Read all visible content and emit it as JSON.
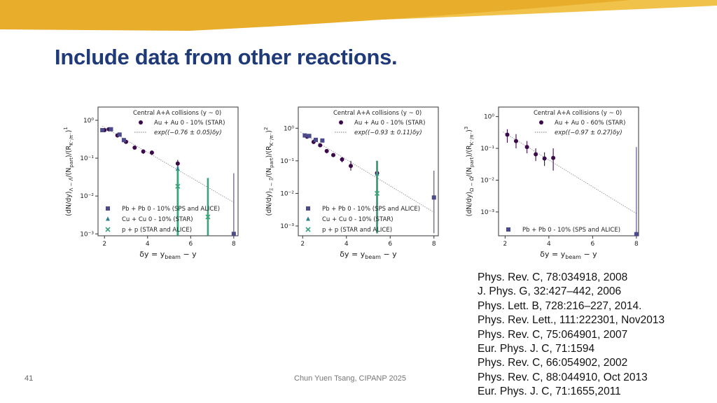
{
  "slide": {
    "title": "Include data from other reactions.",
    "footer": "Chun Yuen Tsang, CIPANP 2025",
    "page_number": "41",
    "banner_colors": [
      "#e8ad2a",
      "#f0c24a"
    ]
  },
  "references": [
    "Phys. Rev. C, 78:034918, 2008",
    "J. Phys. G, 32:427–442, 2006",
    "Phys. Lett. B, 728:216–227, 2014.",
    "Phys. Rev. Lett., 111:222301, Nov2013",
    "Phys. Rev. C, 75:064901, 2007",
    "Eur. Phys. J. C, 71:1594",
    "Phys. Rev. C, 66:054902, 2002",
    "Phys. Rev. C, 88:044910, Oct 2013",
    "Eur. Phys. J. C, 71:1655,2011"
  ],
  "chart_data": [
    {
      "type": "scatter",
      "ylabel": "(dN/dy)_{Λ−Λ̄}/(N_part)/(R_{K⁻/π⁻})^1",
      "ylabel_parts": {
        "base": "(dN/dy)",
        "sub": "Λ − Λ̄",
        "mid": "/(N",
        "sub2": "part",
        "mid2": ")/(R",
        "sub3": "K⁻/π⁻",
        "end": ")",
        "sup": "1"
      },
      "xlabel": "δy = y_beam − y",
      "xlabel_parts": {
        "pre": "δy = y",
        "sub": "beam",
        "post": " − y"
      },
      "x_ticks": [
        "2",
        "4",
        "6",
        "8"
      ],
      "y_ticks": [
        "10⁰",
        "10⁻¹",
        "10⁻²",
        "10⁻³"
      ],
      "xlim": [
        1.7,
        8.2
      ],
      "ylog": true,
      "ylim_exp": [
        -3.05,
        0.35
      ],
      "legend_top": {
        "header": "Central A+A collisions (y ~ 0)",
        "entries": [
          {
            "label": "Au + Au 0 - 10% (STAR)",
            "marker": "circle",
            "color": "#3b0a4a"
          },
          {
            "label": "exp((−0.76 ± 0.05)δy)",
            "marker": "dotted-line",
            "color": "#777777"
          }
        ]
      },
      "legend_bottom": [
        {
          "label": "Pb + Pb 0 - 10% (SPS and ALICE)",
          "marker": "square",
          "color": "#4b4a8a"
        },
        {
          "label": "Cu + Cu 0 - 10% (STAR)",
          "marker": "triangle",
          "color": "#2a7d8c"
        },
        {
          "label": "p + p (STAR and ALICE)",
          "marker": "x",
          "color": "#39a37a"
        }
      ],
      "fit": {
        "slope": -0.76,
        "ref_x": 2.0,
        "ref_y": 0.65
      },
      "series": [
        {
          "name": "Au + Au 0 - 10% (STAR)",
          "marker": "circle",
          "color": "#3b0a4a",
          "points": [
            [
              2.0,
              0.55
            ],
            [
              2.2,
              0.58
            ],
            [
              2.6,
              0.4
            ],
            [
              3.0,
              0.27
            ],
            [
              3.4,
              0.19
            ],
            [
              3.8,
              0.15
            ],
            [
              4.2,
              0.14
            ],
            [
              5.4,
              0.072
            ]
          ],
          "err": [
            [
              0.5,
              0.6
            ],
            [
              0.52,
              0.64
            ],
            [
              0.35,
              0.45
            ],
            [
              0.24,
              0.3
            ],
            [
              0.17,
              0.21
            ],
            [
              0.13,
              0.17
            ],
            [
              0.12,
              0.16
            ],
            [
              0.06,
              0.09
            ]
          ]
        },
        {
          "name": "Pb + Pb 0 - 10% (SPS and ALICE)",
          "marker": "square",
          "color": "#4b4a8a",
          "points": [
            [
              1.9,
              0.55
            ],
            [
              2.3,
              0.58
            ],
            [
              2.7,
              0.42
            ],
            [
              2.9,
              0.3
            ]
          ],
          "err": [
            [
              0.5,
              0.6
            ],
            [
              0.54,
              0.62
            ],
            [
              0.38,
              0.46
            ],
            [
              0.27,
              0.33
            ]
          ]
        },
        {
          "name": "Cu + Cu 0 - 10% (STAR)",
          "marker": "triangle",
          "color": "#2a7d8c",
          "points": [
            [
              5.4,
              0.052
            ]
          ],
          "err": [
            [
              0.0009,
              0.06
            ]
          ]
        },
        {
          "name": "p + p (STAR and ALICE)",
          "marker": "x",
          "color": "#39a37a",
          "points": [
            [
              5.4,
              0.018
            ],
            [
              6.8,
              0.0028
            ]
          ],
          "err": [
            [
              0.0009,
              0.05
            ],
            [
              0.0009,
              0.03
            ]
          ]
        },
        {
          "name": "Pb + Pb 0 - 10% (SPS and ALICE)",
          "marker": "square",
          "color": "#4b4a8a",
          "points": [
            [
              8.0,
              0.001
            ]
          ],
          "err": [
            [
              0.0009,
              0.04
            ]
          ]
        }
      ]
    },
    {
      "type": "scatter",
      "ylabel": "(dN/dy)_{Ξ−Ξ̄}/(N_part)/(R_{K⁻/π⁻})^2",
      "ylabel_parts": {
        "base": "(dN/dy)",
        "sub": "Ξ − Ξ̄",
        "mid": "/(N",
        "sub2": "part",
        "mid2": ")/(R",
        "sub3": "K⁻/π⁻",
        "end": ")",
        "sup": "2"
      },
      "xlabel": "δy = y_beam − y",
      "xlabel_parts": {
        "pre": "δy = y",
        "sub": "beam",
        "post": " − y"
      },
      "x_ticks": [
        "2",
        "4",
        "6",
        "8"
      ],
      "y_ticks": [
        "10⁰",
        "10⁻¹",
        "10⁻²",
        "10⁻³"
      ],
      "xlim": [
        1.8,
        8.2
      ],
      "ylog": true,
      "ylim_exp": [
        -3.3,
        0.65
      ],
      "legend_top": {
        "header": "Central A+A collisions (y ~ 0)",
        "entries": [
          {
            "label": "Au + Au 0 - 10% (STAR)",
            "marker": "circle",
            "color": "#3b0a4a"
          },
          {
            "label": "exp((−0.93 ± 0.11)δy)",
            "marker": "dotted-line",
            "color": "#777777"
          }
        ]
      },
      "legend_bottom": [
        {
          "label": "Pb + Pb 0 - 10% (SPS and ALICE)",
          "marker": "square",
          "color": "#4b4a8a"
        },
        {
          "label": "Cu + Cu 0 - 10% (STAR)",
          "marker": "triangle",
          "color": "#2a7d8c"
        },
        {
          "label": "p + p (STAR and ALICE)",
          "marker": "x",
          "color": "#39a37a"
        }
      ],
      "fit": {
        "slope": -0.93,
        "ref_x": 2.0,
        "ref_y": 0.7
      },
      "series": [
        {
          "name": "Au + Au 0 - 10% (STAR)",
          "marker": "circle",
          "color": "#3b0a4a",
          "points": [
            [
              2.2,
              0.55
            ],
            [
              2.5,
              0.38
            ],
            [
              2.8,
              0.3
            ],
            [
              3.1,
              0.2
            ],
            [
              3.4,
              0.15
            ],
            [
              3.8,
              0.11
            ],
            [
              4.2,
              0.07
            ],
            [
              5.4,
              0.042
            ]
          ],
          "err": [
            [
              0.5,
              0.62
            ],
            [
              0.33,
              0.44
            ],
            [
              0.26,
              0.34
            ],
            [
              0.17,
              0.23
            ],
            [
              0.13,
              0.17
            ],
            [
              0.09,
              0.13
            ],
            [
              0.05,
              0.1
            ],
            [
              0.03,
              0.06
            ]
          ]
        },
        {
          "name": "Pb + Pb 0 - 10% (SPS and ALICE)",
          "marker": "square",
          "color": "#4b4a8a",
          "points": [
            [
              2.1,
              0.6
            ],
            [
              2.3,
              0.58
            ],
            [
              2.6,
              0.44
            ],
            [
              2.9,
              0.42
            ]
          ],
          "err": [
            [
              0.55,
              0.65
            ],
            [
              0.53,
              0.63
            ],
            [
              0.4,
              0.48
            ],
            [
              0.38,
              0.46
            ]
          ]
        },
        {
          "name": "Cu + Cu 0 - 10% (STAR)",
          "marker": "triangle",
          "color": "#2a7d8c",
          "points": [
            [
              5.4,
              0.04
            ]
          ],
          "err": [
            [
              0.0006,
              0.1
            ]
          ]
        },
        {
          "name": "p + p (STAR and ALICE)",
          "marker": "x",
          "color": "#39a37a",
          "points": [
            [
              5.4,
              0.01
            ]
          ],
          "err": [
            [
              0.0006,
              0.1
            ]
          ]
        },
        {
          "name": "Pb + Pb 0 - 10% (SPS and ALICE)",
          "marker": "square",
          "color": "#4b4a8a",
          "points": [
            [
              8.0,
              0.0075
            ]
          ],
          "err": [
            [
              0.0006,
              0.05
            ]
          ]
        }
      ]
    },
    {
      "type": "scatter",
      "ylabel": "(dN/dy)_{Ω−Ω̄}/(N_part)/(R_{K⁻/π⁻})^3",
      "ylabel_parts": {
        "base": "(dN/dy)",
        "sub": "Ω − Ω̄",
        "mid": "/(N",
        "sub2": "part",
        "mid2": ")/(R",
        "sub3": "K⁻/π⁻",
        "end": ")",
        "sup": "3"
      },
      "xlabel": "δy = y_beam − y",
      "xlabel_parts": {
        "pre": "δy = y",
        "sub": "beam",
        "post": " − y"
      },
      "x_ticks": [
        "2",
        "4",
        "6",
        "8"
      ],
      "y_ticks": [
        "10⁰",
        "10⁻¹",
        "10⁻²",
        "10⁻³"
      ],
      "xlim": [
        1.7,
        8.1
      ],
      "ylog": true,
      "ylim_exp": [
        -3.75,
        0.3
      ],
      "legend_top": {
        "header": "Central A+A collisions (y ~ 0)",
        "entries": [
          {
            "label": "Au + Au 0 - 60% (STAR)",
            "marker": "circle",
            "color": "#3b0a4a"
          },
          {
            "label": "exp((−0.97 ± 0.27)δy)",
            "marker": "dotted-line",
            "color": "#777777"
          }
        ]
      },
      "legend_bottom": [
        {
          "label": "Pb + Pb 0 - 10% (SPS and ALICE)",
          "marker": "square",
          "color": "#4b4a8a"
        }
      ],
      "fit": {
        "slope": -0.97,
        "ref_x": 2.0,
        "ref_y": 0.3
      },
      "series": [
        {
          "name": "Au + Au 0 - 60% (STAR)",
          "marker": "circle",
          "color": "#3b0a4a",
          "points": [
            [
              2.1,
              0.27
            ],
            [
              2.5,
              0.17
            ],
            [
              3.0,
              0.11
            ],
            [
              3.4,
              0.065
            ],
            [
              3.8,
              0.048
            ],
            [
              4.2,
              0.05
            ]
          ],
          "err": [
            [
              0.15,
              0.4
            ],
            [
              0.1,
              0.28
            ],
            [
              0.07,
              0.17
            ],
            [
              0.04,
              0.1
            ],
            [
              0.028,
              0.075
            ],
            [
              0.02,
              0.1
            ]
          ]
        },
        {
          "name": "Pb + Pb 0 - 10% (SPS and ALICE)",
          "marker": "square",
          "color": "#4b4a8a",
          "points": [
            [
              8.0,
              0.0002
            ]
          ],
          "err": [
            [
              0.00018,
              0.11
            ]
          ]
        }
      ]
    }
  ]
}
